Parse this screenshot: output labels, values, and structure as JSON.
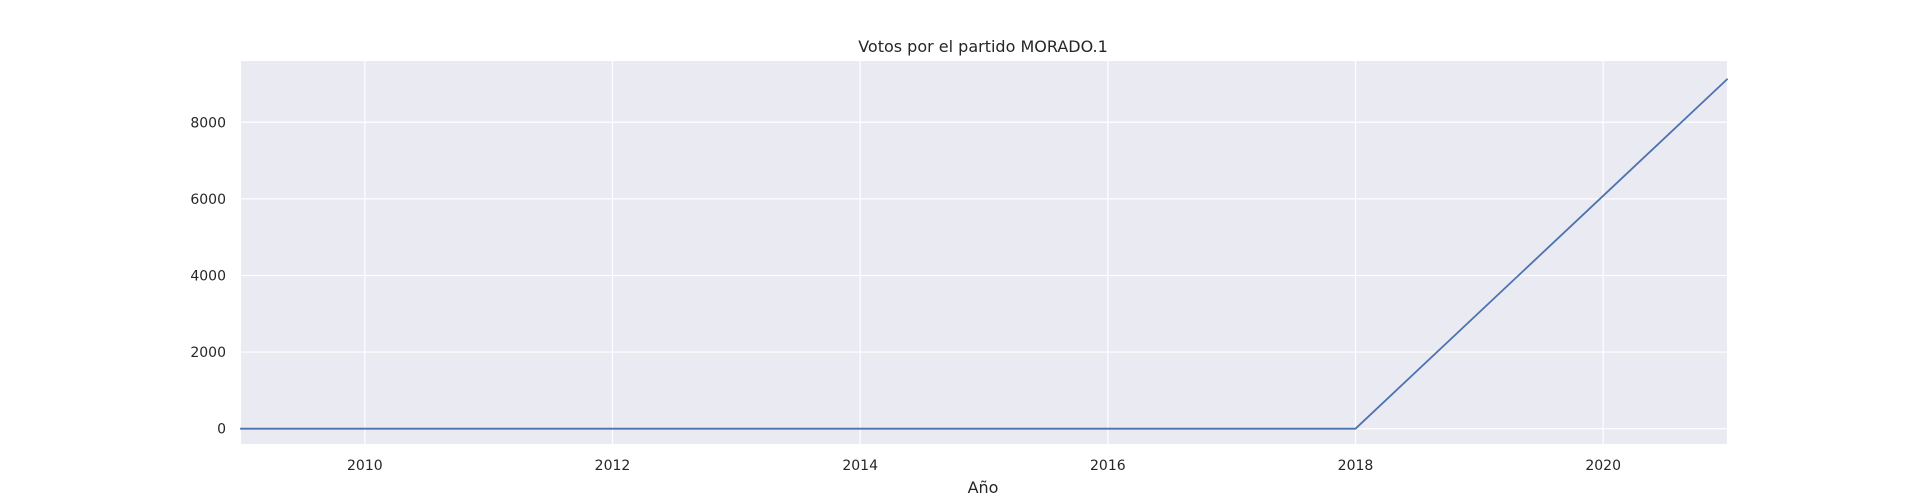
{
  "chart_data": {
    "type": "line",
    "title": "Votos por el partido MORADO.1",
    "xlabel": "Año",
    "ylabel": "",
    "x": [
      2009,
      2010,
      2011,
      2012,
      2013,
      2014,
      2015,
      2016,
      2017,
      2018,
      2019,
      2020,
      2021
    ],
    "series": [
      {
        "values": [
          0,
          0,
          0,
          0,
          0,
          0,
          0,
          0,
          0,
          0,
          3040,
          6080,
          9120
        ]
      }
    ],
    "xlim": [
      2009,
      2021
    ],
    "ylim": [
      -400,
      9600
    ],
    "x_ticks": [
      2010,
      2012,
      2014,
      2016,
      2018,
      2020
    ],
    "y_ticks": [
      0,
      2000,
      4000,
      6000,
      8000
    ],
    "grid": true,
    "colors": {
      "plot_background": "#eaeaf2",
      "grid": "#ffffff",
      "line": "#4c72b0",
      "text": "#262626"
    }
  }
}
